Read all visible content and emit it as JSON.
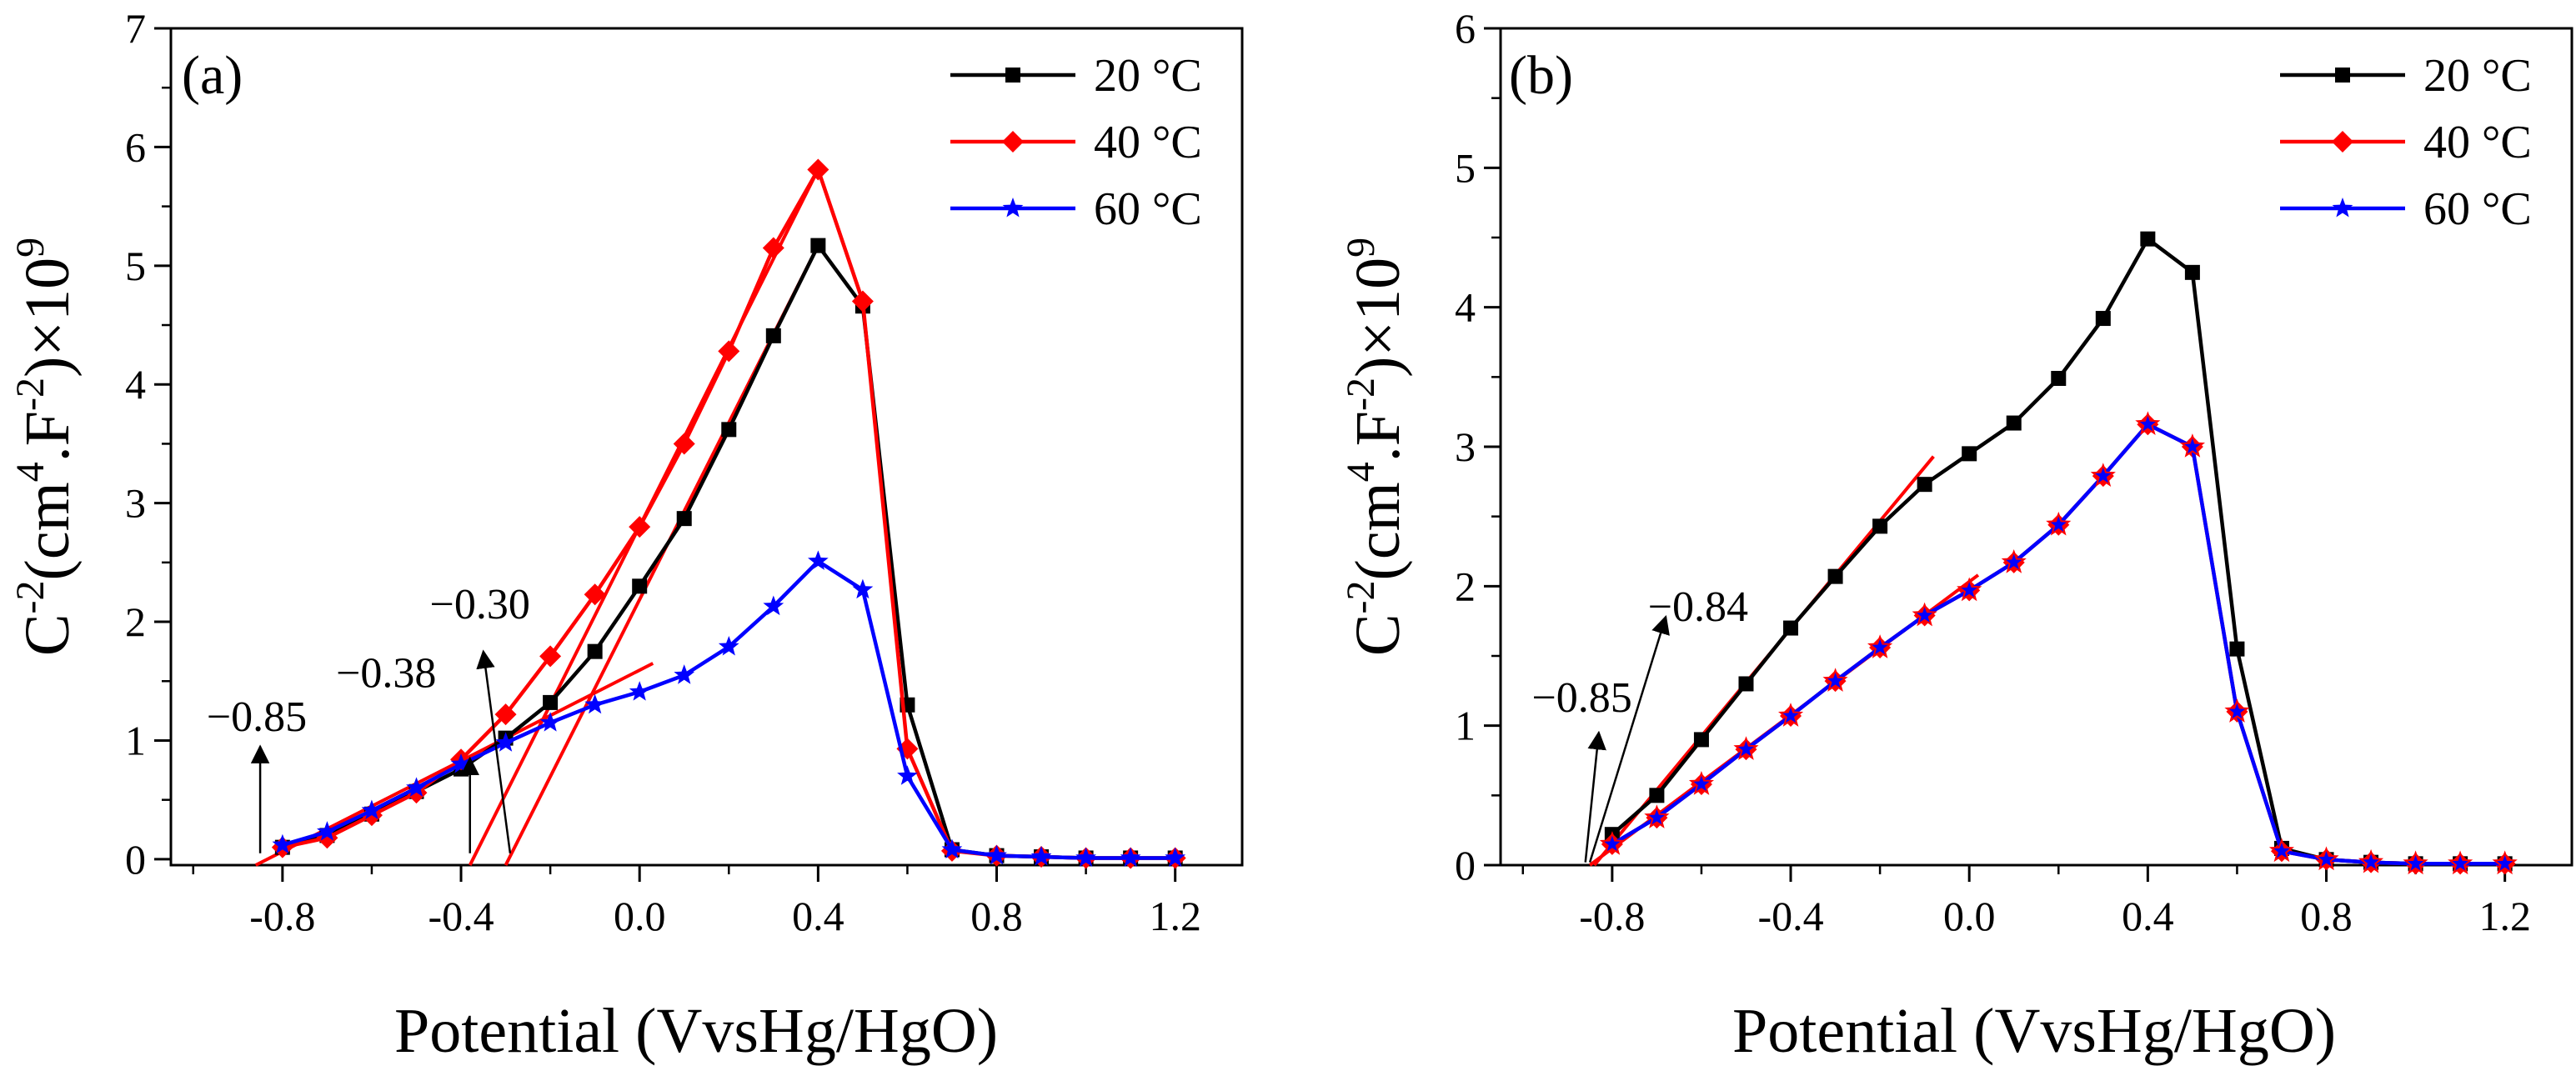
{
  "chart_data": [
    {
      "type": "line",
      "panel_label": "(a)",
      "xlabel": "Potential (VvsHg/HgO)",
      "ylabel_main": "C",
      "ylabel_parts": [
        "C",
        "-2",
        "(cm",
        "4",
        ".F",
        "-2",
        ")×10",
        "9"
      ],
      "xlim": [
        -1.05,
        1.35
      ],
      "ylim": [
        -0.05,
        7
      ],
      "xticks": [
        -0.8,
        -0.4,
        0.0,
        0.4,
        0.8,
        1.2
      ],
      "xtick_labels": [
        "-0.8",
        "-0.4",
        "0.0",
        "0.4",
        "0.8",
        "1.2"
      ],
      "yticks": [
        0,
        1,
        2,
        3,
        4,
        5,
        6,
        7
      ],
      "ytick_labels": [
        "0",
        "1",
        "2",
        "3",
        "4",
        "5",
        "6",
        "7"
      ],
      "legend_position": "top-right",
      "series": [
        {
          "name": "20 °C",
          "color": "#000000",
          "marker": "square",
          "x": [
            -0.8,
            -0.7,
            -0.6,
            -0.5,
            -0.4,
            -0.3,
            -0.2,
            -0.1,
            0.0,
            0.1,
            0.2,
            0.3,
            0.4,
            0.5,
            0.6,
            0.7,
            0.8,
            0.9,
            1.0,
            1.1,
            1.2
          ],
          "y": [
            0.1,
            0.2,
            0.38,
            0.57,
            0.76,
            1.02,
            1.32,
            1.75,
            2.3,
            2.87,
            3.62,
            4.41,
            5.17,
            4.66,
            1.3,
            0.08,
            0.03,
            0.02,
            0.01,
            0.01,
            0.01
          ]
        },
        {
          "name": "40 °C",
          "color": "#ff0000",
          "marker": "diamond",
          "x": [
            -0.8,
            -0.7,
            -0.6,
            -0.5,
            -0.4,
            -0.3,
            -0.2,
            -0.1,
            0.0,
            0.1,
            0.2,
            0.3,
            0.4,
            0.5,
            0.6,
            0.7,
            0.8,
            0.9,
            1.0,
            1.1,
            1.2
          ],
          "y": [
            0.1,
            0.18,
            0.37,
            0.56,
            0.84,
            1.22,
            1.71,
            2.23,
            2.8,
            3.5,
            4.28,
            5.15,
            5.81,
            4.7,
            0.93,
            0.07,
            0.03,
            0.02,
            0.01,
            0.01,
            0.01
          ]
        },
        {
          "name": "60 °C",
          "color": "#0000ff",
          "marker": "star",
          "x": [
            -0.8,
            -0.7,
            -0.6,
            -0.5,
            -0.4,
            -0.3,
            -0.2,
            -0.1,
            0.0,
            0.1,
            0.2,
            0.3,
            0.4,
            0.5,
            0.6,
            0.7,
            0.8,
            0.9,
            1.0,
            1.1,
            1.2
          ],
          "y": [
            0.12,
            0.23,
            0.41,
            0.6,
            0.8,
            0.98,
            1.15,
            1.3,
            1.41,
            1.55,
            1.79,
            2.13,
            2.51,
            2.27,
            0.7,
            0.08,
            0.03,
            0.02,
            0.01,
            0.01,
            0.01
          ]
        }
      ],
      "fit_lines": [
        {
          "x": [
            -0.86,
            0.03
          ],
          "y": [
            -0.05,
            1.65
          ]
        },
        {
          "x": [
            -0.38,
            0.4
          ],
          "y": [
            -0.05,
            5.81
          ]
        },
        {
          "x": [
            -0.3,
            0.4
          ],
          "y": [
            -0.05,
            5.17
          ]
        }
      ],
      "annotations": [
        {
          "text": "−0.85",
          "x_at": -0.85,
          "tip": [
            -0.85,
            0.95
          ],
          "anchor": [
            -0.85,
            0.05
          ],
          "label_pos": [
            -0.97,
            1.08
          ]
        },
        {
          "text": "−0.38",
          "x_at": -0.38,
          "tip": [
            -0.38,
            0.85
          ],
          "anchor": [
            -0.38,
            0.05
          ],
          "label_pos": [
            -0.68,
            1.45
          ]
        },
        {
          "text": "−0.30",
          "x_at": -0.3,
          "tip": [
            -0.35,
            1.75
          ],
          "anchor": [
            -0.29,
            0.05
          ],
          "label_pos": [
            -0.47,
            2.03
          ]
        }
      ]
    },
    {
      "type": "line",
      "panel_label": "(b)",
      "xlabel": "Potential (VvsHg/HgO)",
      "ylabel_main": "C",
      "ylabel_parts": [
        "C",
        "-2",
        "(cm",
        "4",
        ".F",
        "-2",
        ")×10",
        "9"
      ],
      "xlim": [
        -1.05,
        1.35
      ],
      "ylim": [
        0,
        6
      ],
      "xticks": [
        -0.8,
        -0.4,
        0.0,
        0.4,
        0.8,
        1.2
      ],
      "xtick_labels": [
        "-0.8",
        "-0.4",
        "0.0",
        "0.4",
        "0.8",
        "1.2"
      ],
      "yticks": [
        0,
        1,
        2,
        3,
        4,
        5,
        6
      ],
      "ytick_labels": [
        "0",
        "1",
        "2",
        "3",
        "4",
        "5",
        "6"
      ],
      "legend_position": "top-right",
      "series": [
        {
          "name": "20 °C",
          "color": "#000000",
          "marker": "square",
          "x": [
            -0.8,
            -0.7,
            -0.6,
            -0.5,
            -0.4,
            -0.3,
            -0.2,
            -0.1,
            0.0,
            0.1,
            0.2,
            0.3,
            0.4,
            0.5,
            0.6,
            0.7,
            0.8,
            0.9,
            1.0,
            1.1,
            1.2
          ],
          "y": [
            0.22,
            0.5,
            0.9,
            1.3,
            1.7,
            2.07,
            2.43,
            2.73,
            2.95,
            3.17,
            3.49,
            3.92,
            4.49,
            4.25,
            1.55,
            0.12,
            0.04,
            0.02,
            0.01,
            0.01,
            0.01
          ]
        },
        {
          "name": "40 °C",
          "color": "#ff0000",
          "marker": "diamond",
          "x": [
            -0.8,
            -0.7,
            -0.6,
            -0.5,
            -0.4,
            -0.3,
            -0.2,
            -0.1,
            0.0,
            0.1,
            0.2,
            0.3,
            0.4,
            0.5,
            0.6,
            0.7,
            0.8,
            0.9,
            1.0,
            1.1,
            1.2
          ],
          "y": [
            0.15,
            0.34,
            0.58,
            0.83,
            1.07,
            1.32,
            1.56,
            1.79,
            1.97,
            2.17,
            2.44,
            2.79,
            3.16,
            3.0,
            1.1,
            0.1,
            0.04,
            0.02,
            0.01,
            0.01,
            0.01
          ]
        },
        {
          "name": "60 °C",
          "color": "#0000ff",
          "marker": "star",
          "x": [
            -0.8,
            -0.7,
            -0.6,
            -0.5,
            -0.4,
            -0.3,
            -0.2,
            -0.1,
            0.0,
            0.1,
            0.2,
            0.3,
            0.4,
            0.5,
            0.6,
            0.7,
            0.8,
            0.9,
            1.0,
            1.1,
            1.2
          ],
          "y": [
            0.15,
            0.34,
            0.58,
            0.83,
            1.07,
            1.32,
            1.56,
            1.79,
            1.97,
            2.17,
            2.44,
            2.79,
            3.16,
            3.0,
            1.1,
            0.1,
            0.04,
            0.02,
            0.01,
            0.01,
            0.01
          ]
        }
      ],
      "fit_lines": [
        {
          "x": [
            -0.84,
            -0.08
          ],
          "y": [
            0.0,
            2.93
          ]
        },
        {
          "x": [
            -0.85,
            0.02
          ],
          "y": [
            0.0,
            2.08
          ]
        }
      ],
      "annotations": [
        {
          "text": "−0.85",
          "x_at": -0.85,
          "tip": [
            -0.83,
            0.95
          ],
          "anchor": [
            -0.86,
            0.02
          ],
          "label_pos": [
            -0.98,
            1.1
          ]
        },
        {
          "text": "−0.84",
          "x_at": -0.84,
          "tip": [
            -0.68,
            1.78
          ],
          "anchor": [
            -0.85,
            0.02
          ],
          "label_pos": [
            -0.72,
            1.75
          ]
        }
      ]
    }
  ]
}
